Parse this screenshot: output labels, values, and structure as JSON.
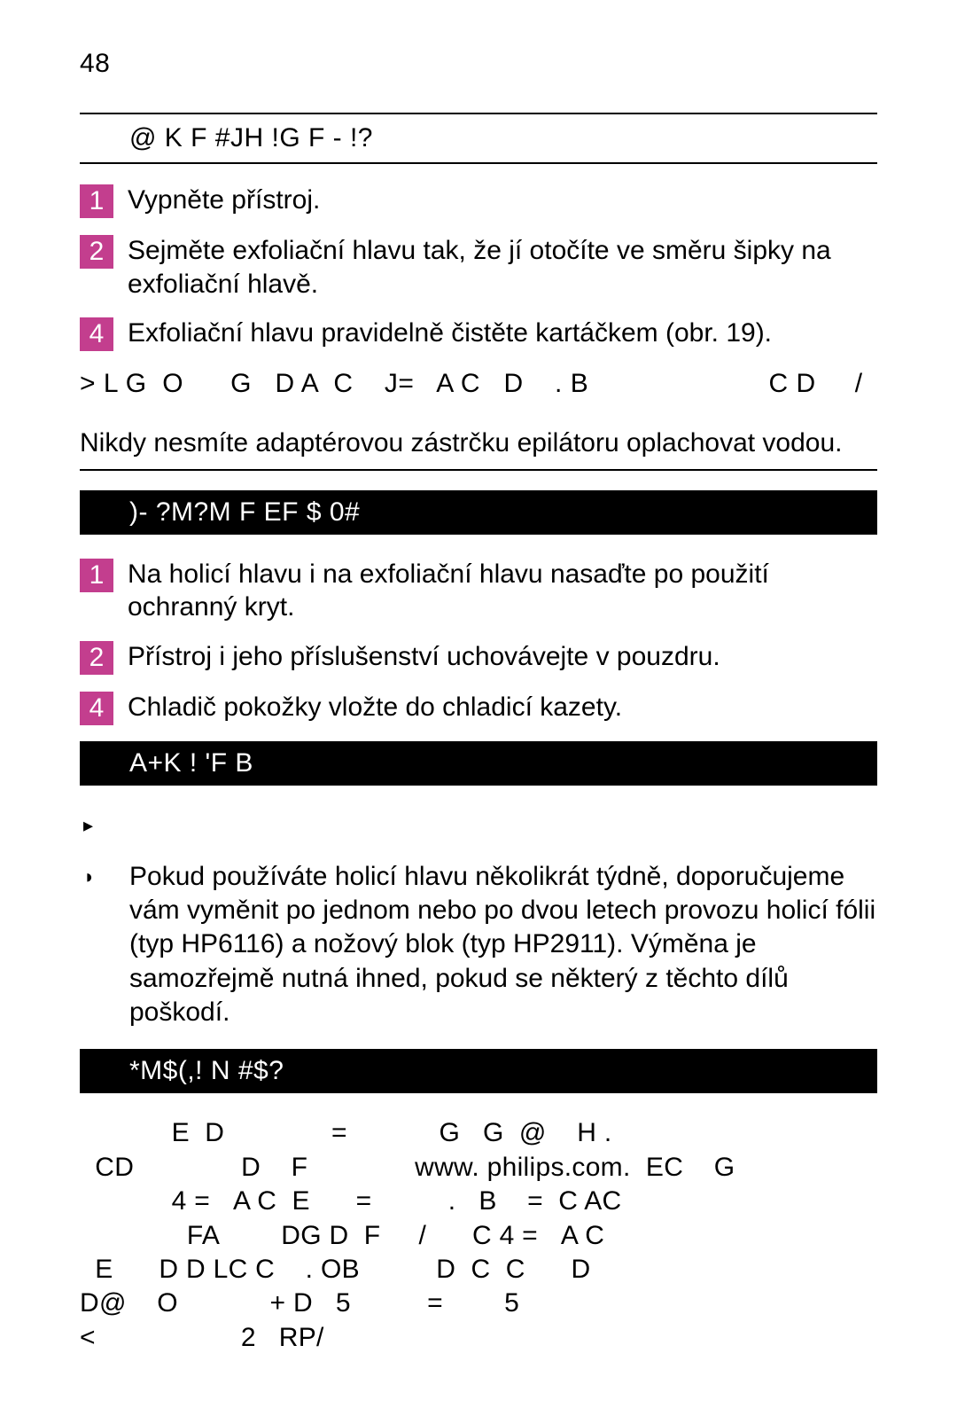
{
  "colors": {
    "badge_bg": "#c33e8e",
    "black_header_bg": "#000000",
    "text": "#000000",
    "page_bg": "#ffffff"
  },
  "page_number": "48",
  "sections": {
    "exf": {
      "heading": "@ K F #JH   !G F - !?",
      "steps": [
        {
          "num": "1",
          "text": "Vypněte přístroj."
        },
        {
          "num": "2",
          "text": "Sejměte exfoliační hlavu tak, že jí otočíte ve směru šipky na exfoliační hlavě."
        },
        {
          "num": "4",
          "text": "Exfoliační hlavu pravidelně čistěte kartáčkem (obr. 19)."
        }
      ],
      "code_lines": "> L G  O      G   D A  C    J=   A C   D    . B                       C D     /",
      "note": "Nikdy nesmíte adaptérovou zástrčku epilátoru oplachovat vodou."
    },
    "storage": {
      "heading": ")- ?M?M F  EF  $ 0#",
      "steps": [
        {
          "num": "1",
          "text": "Na holicí hlavu i na exfoliační hlavu nasaďte po použití ochranný kryt."
        },
        {
          "num": "2",
          "text": "Přístroj i jeho příslušenství uchovávejte v pouzdru."
        },
        {
          "num": "4",
          "text": "Chladič pokožky vložte do chladicí kazety."
        }
      ]
    },
    "replace": {
      "heading": "A+K ! 'F B",
      "bullets": [
        {
          "marker": "▸",
          "text": ""
        },
        {
          "marker": "◗",
          "text": "Pokud používáte holicí hlavu několikrát týdně, doporučujeme vám vyměnit po jednom nebo po dvou letech provozu holicí fólii (typ HP6116) a nožový blok (typ HP2911). Výměna je samozřejmě nutná ihned, pokud se některý z těchto dílů poškodí."
        }
      ]
    },
    "guarantee": {
      "heading": "*M$(,! N  #$?",
      "body": "            E  D              =            G   G  @    H .\n  CD              D    F              www. philips.com.  EC    G\n            4 =   A C  E      =          .   B    =  C AC\n              FA        DG D  F     /      C 4 =   A C\n  E      D D LC C    . OB          D  C  C      D\nD@    O            + D   5          =        5\n<                   2   RP/"
    }
  }
}
